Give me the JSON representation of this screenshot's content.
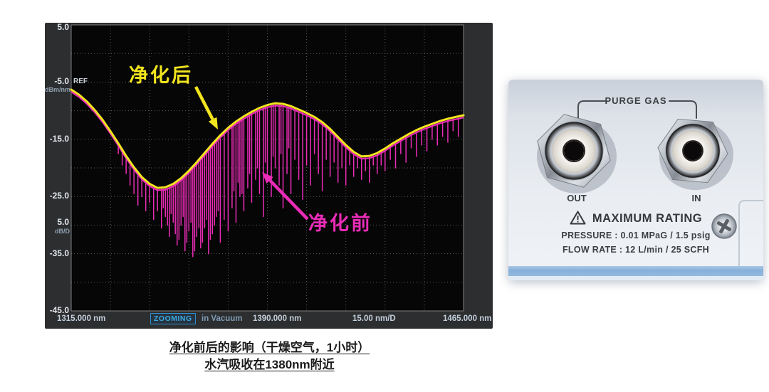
{
  "screen": {
    "y_axis": {
      "labels": [
        "5.0",
        "-5.0",
        "-15.0",
        "-25.0",
        "-35.0",
        "-45.0"
      ],
      "ref": "REF",
      "unit": "dBm/nm",
      "scale_value": "5.0",
      "scale_unit": "dB/D"
    },
    "footer": {
      "start": "1315.000 nm",
      "zooming": "ZOOMING",
      "medium": "in Vacuum",
      "center": "1390.000 nm",
      "span": "15.00 nm/D",
      "stop": "1465.000 nm"
    },
    "annotations": {
      "after": "净化后",
      "before": "净化前"
    },
    "colors": {
      "after_trace": "#f2e51f",
      "before_trace": "#ea2cb7",
      "grid": "#5c5c5c",
      "plot_bg": "#060606",
      "bezel": "#2c2e30",
      "zooming_accent": "#39a9e6"
    }
  },
  "chart_data": {
    "type": "line",
    "x_range": [
      1315,
      1465
    ],
    "y_range": [
      -45,
      5
    ],
    "x_div_nm": 15,
    "y_div_db": 5,
    "grid": true,
    "x_tick_labels": [
      "1315.000 nm",
      "1390.000 nm",
      "1465.000 nm"
    ],
    "y_tick_labels": [
      "5.0",
      "-5.0",
      "-15.0",
      "-25.0",
      "-35.0",
      "-45.0"
    ],
    "series": [
      {
        "name": "净化后",
        "color": "#f2e51f",
        "points": [
          [
            1315,
            -6.3
          ],
          [
            1318,
            -7.2
          ],
          [
            1321,
            -8.4
          ],
          [
            1324,
            -9.9
          ],
          [
            1327,
            -11.6
          ],
          [
            1330,
            -13.6
          ],
          [
            1333,
            -15.7
          ],
          [
            1336,
            -17.9
          ],
          [
            1339,
            -19.9
          ],
          [
            1342,
            -21.6
          ],
          [
            1345,
            -22.8
          ],
          [
            1348,
            -23.5
          ],
          [
            1351,
            -23.4
          ],
          [
            1354,
            -22.8
          ],
          [
            1357,
            -21.8
          ],
          [
            1360,
            -20.5
          ],
          [
            1363,
            -19.0
          ],
          [
            1366,
            -17.4
          ],
          [
            1369,
            -15.8
          ],
          [
            1372,
            -14.3
          ],
          [
            1375,
            -13.0
          ],
          [
            1378,
            -11.9
          ],
          [
            1381,
            -11.0
          ],
          [
            1384,
            -10.2
          ],
          [
            1387,
            -9.5
          ],
          [
            1390,
            -9.0
          ],
          [
            1393,
            -8.7
          ],
          [
            1396,
            -8.8
          ],
          [
            1399,
            -9.2
          ],
          [
            1402,
            -9.8
          ],
          [
            1405,
            -10.4
          ],
          [
            1408,
            -11.1
          ],
          [
            1411,
            -12.0
          ],
          [
            1414,
            -13.2
          ],
          [
            1417,
            -14.6
          ],
          [
            1420,
            -16.0
          ],
          [
            1423,
            -17.2
          ],
          [
            1426,
            -18.0
          ],
          [
            1429,
            -17.9
          ],
          [
            1432,
            -17.4
          ],
          [
            1435,
            -16.6
          ],
          [
            1438,
            -15.7
          ],
          [
            1441,
            -14.9
          ],
          [
            1444,
            -14.1
          ],
          [
            1447,
            -13.4
          ],
          [
            1450,
            -12.8
          ],
          [
            1453,
            -12.3
          ],
          [
            1456,
            -11.8
          ],
          [
            1459,
            -11.4
          ],
          [
            1462,
            -11.1
          ],
          [
            1465,
            -10.8
          ]
        ]
      },
      {
        "name": "净化前",
        "color": "#ea2cb7",
        "envelope_offset_db": -0.4,
        "spikes": [
          [
            1333,
            -17.5
          ],
          [
            1334.5,
            -19.5
          ],
          [
            1336,
            -21
          ],
          [
            1337.5,
            -23
          ],
          [
            1339,
            -24.5
          ],
          [
            1340.5,
            -26.5
          ],
          [
            1342,
            -25
          ],
          [
            1343.5,
            -27.5
          ],
          [
            1345,
            -26
          ],
          [
            1346.5,
            -29
          ],
          [
            1348,
            -27.5
          ],
          [
            1349.5,
            -30.5
          ],
          [
            1350.2,
            -27
          ],
          [
            1351,
            -28.5
          ],
          [
            1351.8,
            -30
          ],
          [
            1352.5,
            -32
          ],
          [
            1353.2,
            -28
          ],
          [
            1354,
            -29.5
          ],
          [
            1354.8,
            -31.5
          ],
          [
            1355.5,
            -33.5
          ],
          [
            1356.2,
            -32.5
          ],
          [
            1357,
            -30
          ],
          [
            1357.8,
            -28.5
          ],
          [
            1358.5,
            -34.5
          ],
          [
            1359.2,
            -33
          ],
          [
            1360,
            -31
          ],
          [
            1360.8,
            -29.5
          ],
          [
            1361.5,
            -35.5
          ],
          [
            1362.2,
            -34.5
          ],
          [
            1363,
            -32
          ],
          [
            1363.8,
            -30.5
          ],
          [
            1364.5,
            -34
          ],
          [
            1365.2,
            -33
          ],
          [
            1366,
            -30.5
          ],
          [
            1366.8,
            -29
          ],
          [
            1367.5,
            -35
          ],
          [
            1368.2,
            -32.5
          ],
          [
            1369,
            -31.5
          ],
          [
            1369.8,
            -30
          ],
          [
            1370.5,
            -28.5
          ],
          [
            1371.2,
            -27.5
          ],
          [
            1372,
            -33
          ],
          [
            1373.5,
            -29
          ],
          [
            1375,
            -31
          ],
          [
            1376.5,
            -27
          ],
          [
            1377.2,
            -24
          ],
          [
            1378,
            -29.5
          ],
          [
            1378.8,
            -22.5
          ],
          [
            1379.5,
            -25
          ],
          [
            1380.3,
            -24.5
          ],
          [
            1381,
            -27.5
          ],
          [
            1382.5,
            -23.5
          ],
          [
            1383.2,
            -21
          ],
          [
            1384,
            -26
          ],
          [
            1385.5,
            -22
          ],
          [
            1386.2,
            -20
          ],
          [
            1387,
            -24.5
          ],
          [
            1388.5,
            -28.5
          ],
          [
            1389.2,
            -19
          ],
          [
            1390,
            -21.5
          ],
          [
            1391.5,
            -25
          ],
          [
            1392.2,
            -18
          ],
          [
            1393,
            -20
          ],
          [
            1394.5,
            -23
          ],
          [
            1395.2,
            -17.5
          ],
          [
            1396,
            -27
          ],
          [
            1397.5,
            -21
          ],
          [
            1398.2,
            -16.5
          ],
          [
            1399,
            -24.5
          ],
          [
            1400.5,
            -18.5
          ],
          [
            1402,
            -22
          ],
          [
            1403.5,
            -25.5
          ],
          [
            1405,
            -19.5
          ],
          [
            1406.5,
            -23
          ],
          [
            1408,
            -17.5
          ],
          [
            1409.5,
            -21
          ],
          [
            1411,
            -24
          ],
          [
            1412.5,
            -18.5
          ],
          [
            1414,
            -21.5
          ],
          [
            1415.5,
            -19
          ],
          [
            1417,
            -22.5
          ],
          [
            1418.5,
            -20
          ],
          [
            1420,
            -23
          ],
          [
            1421.5,
            -19.5
          ],
          [
            1423,
            -21.5
          ],
          [
            1424.5,
            -20
          ],
          [
            1426,
            -22
          ],
          [
            1427.5,
            -20.5
          ],
          [
            1429,
            -22.5
          ],
          [
            1430.5,
            -19.5
          ],
          [
            1432,
            -21
          ],
          [
            1433.5,
            -19.5
          ],
          [
            1435,
            -20.5
          ],
          [
            1437,
            -18.5
          ],
          [
            1439,
            -20
          ],
          [
            1441,
            -17.5
          ],
          [
            1443,
            -19
          ],
          [
            1445,
            -16.5
          ],
          [
            1447,
            -18
          ],
          [
            1449,
            -16
          ],
          [
            1451,
            -17
          ],
          [
            1453,
            -15
          ],
          [
            1455,
            -16
          ],
          [
            1457,
            -14.5
          ],
          [
            1459,
            -15.5
          ],
          [
            1461,
            -13.5
          ],
          [
            1463,
            -14.5
          ]
        ]
      }
    ]
  },
  "photo": {
    "purge_gas_label": "PURGE GAS",
    "out_label": "OUT",
    "in_label": "IN",
    "warning_icon": "warning-triangle-icon",
    "max_rating_label": "MAXIMUM RATING",
    "pressure_label": "PRESSURE : 0.01 MPaG / 1.5 psig",
    "flow_label": "FLOW RATE : 12 L/min / 25 SCFH"
  },
  "caption": {
    "line1": "净化前后的影响（干燥空气，1小时）",
    "line2": "水汽吸收在1380nm附近"
  }
}
